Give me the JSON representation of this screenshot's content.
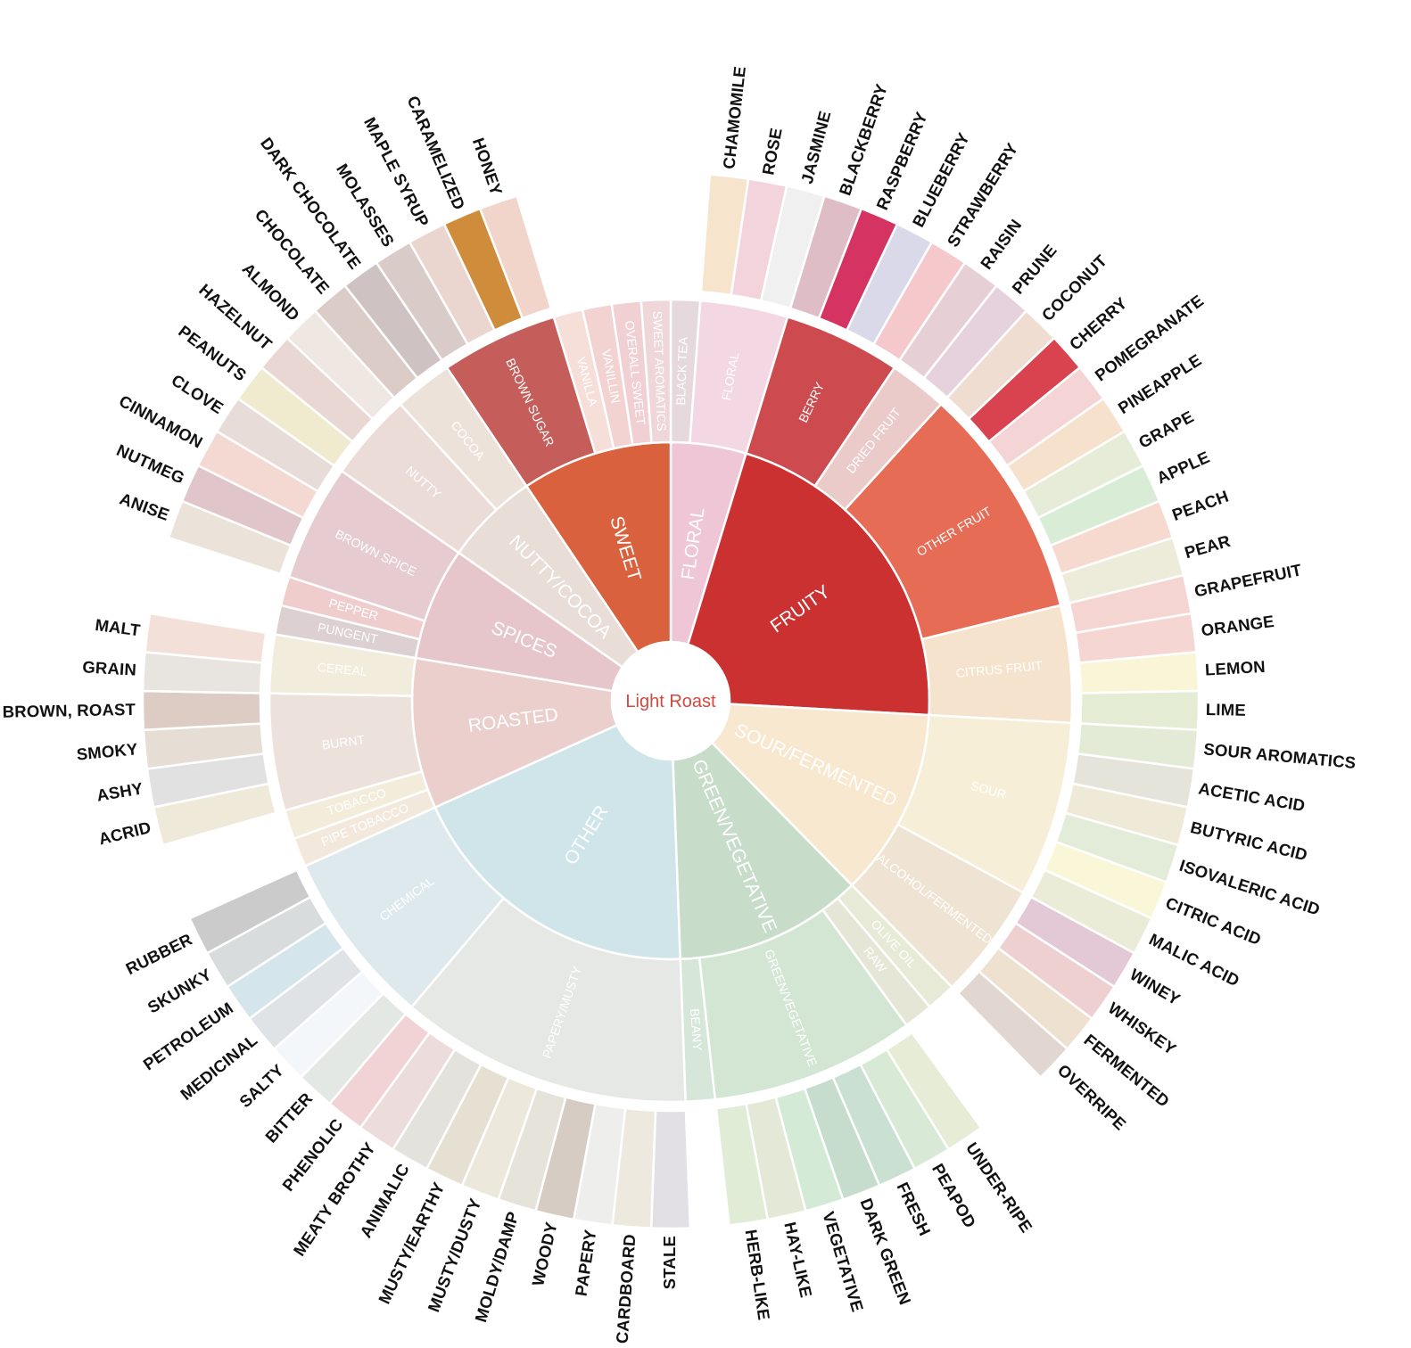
{
  "center": {
    "label": "Light Roast",
    "color": "#d3483f"
  },
  "categories": [
    {
      "label": "FLORAL",
      "color": "#eec6d6",
      "sub": [
        {
          "label": "BLACK TEA",
          "color": "#e6d9dd",
          "leaves": []
        },
        {
          "label": "FLORAL",
          "color": "#f3d7e2",
          "leaves": [
            {
              "label": "CHAMOMILE",
              "color": "#f7e4cd"
            },
            {
              "label": "ROSE",
              "color": "#f4d4dc"
            },
            {
              "label": "JASMINE",
              "color": "#f0f0f0"
            }
          ]
        }
      ]
    },
    {
      "label": "FRUITY",
      "color": "#cb3131",
      "sub": [
        {
          "label": "BERRY",
          "color": "#cd4b4f",
          "leaves": [
            {
              "label": "BLACKBERRY",
              "color": "#dfbdc6"
            },
            {
              "label": "RASPBERRY",
              "color": "#d53463"
            },
            {
              "label": "BLUEBERRY",
              "color": "#d9d9ea"
            },
            {
              "label": "STRAWBERRY",
              "color": "#f5c9cc"
            }
          ]
        },
        {
          "label": "DRIED FRUIT",
          "color": "#ebcaca",
          "leaves": [
            {
              "label": "RAISIN",
              "color": "#e7cfd6"
            },
            {
              "label": "PRUNE",
              "color": "#e5d2dc"
            }
          ]
        },
        {
          "label": "OTHER FRUIT",
          "color": "#e66c56",
          "leaves": [
            {
              "label": "COCONUT",
              "color": "#efddd1"
            },
            {
              "label": "CHERRY",
              "color": "#d8434f"
            },
            {
              "label": "POMEGRANATE",
              "color": "#f4d4d4"
            },
            {
              "label": "PINEAPPLE",
              "color": "#f6e2cc"
            },
            {
              "label": "GRAPE",
              "color": "#e7ecd8"
            },
            {
              "label": "APPLE",
              "color": "#d9ecd5"
            },
            {
              "label": "PEACH",
              "color": "#f6d9cf"
            },
            {
              "label": "PEAR",
              "color": "#edebd9"
            }
          ]
        },
        {
          "label": "CITRUS FRUIT",
          "color": "#f6e3cd",
          "leaves": [
            {
              "label": "GRAPEFRUIT",
              "color": "#f5d5d2"
            },
            {
              "label": "ORANGE",
              "color": "#f5d6d2"
            },
            {
              "label": "LEMON",
              "color": "#f9f5d6"
            },
            {
              "label": "LIME",
              "color": "#e4ecd4"
            }
          ]
        }
      ]
    },
    {
      "label": "SOUR/FERMENTED",
      "color": "#f7e8cf",
      "sub": [
        {
          "label": "SOUR",
          "color": "#f7eed8",
          "leaves": [
            {
              "label": "SOUR AROMATICS",
              "color": "#e3ebd6"
            },
            {
              "label": "ACETIC ACID",
              "color": "#e4e4da"
            },
            {
              "label": "BUTYRIC ACID",
              "color": "#efe9d8"
            },
            {
              "label": "ISOVALERIC ACID",
              "color": "#e3ecd8"
            },
            {
              "label": "CITRIC ACID",
              "color": "#faf7d8"
            },
            {
              "label": "MALIC ACID",
              "color": "#eaecd8"
            }
          ]
        },
        {
          "label": "ALCOHOL/FERMENTED",
          "color": "#efe3d3",
          "leaves": [
            {
              "label": "WINEY",
              "color": "#e3c8d6"
            },
            {
              "label": "WHISKEY",
              "color": "#efd0d0"
            },
            {
              "label": "FERMENTED",
              "color": "#eee1d0"
            },
            {
              "label": "OVERRIPE",
              "color": "#e2d6d1"
            }
          ]
        }
      ]
    },
    {
      "label": "GREEN/VEGETATIVE",
      "color": "#c7dcc9",
      "sub": [
        {
          "label": "OLIVE OIL",
          "color": "#e6ead6",
          "leaves": []
        },
        {
          "label": "RAW",
          "color": "#e6e6d6",
          "leaves": []
        },
        {
          "label": "GREEN/VEGETATIVE",
          "color": "#d3e6d4",
          "leaves": [
            {
              "label": "UNDER-RIPE",
              "color": "#e6ecd6"
            },
            {
              "label": "PEAPOD",
              "color": "#d8ead6"
            },
            {
              "label": "FRESH",
              "color": "#c9e0d2"
            },
            {
              "label": "DARK GREEN",
              "color": "#c6dccc"
            },
            {
              "label": "VEGETATIVE",
              "color": "#d3ead6"
            },
            {
              "label": "HAY-LIKE",
              "color": "#e3e9d6"
            },
            {
              "label": "HERB-LIKE",
              "color": "#e0ecd6"
            }
          ]
        },
        {
          "label": "BEANY",
          "color": "#d6e6d9",
          "leaves": []
        }
      ]
    },
    {
      "label": "OTHER",
      "color": "#cfe5ea",
      "sub": [
        {
          "label": "PAPERY/MUSTY",
          "color": "#e6e8e6",
          "leaves": [
            {
              "label": "STALE",
              "color": "#e2e0e4"
            },
            {
              "label": "CARDBOARD",
              "color": "#eee9df"
            },
            {
              "label": "PAPERY",
              "color": "#eeeeec"
            },
            {
              "label": "WOODY",
              "color": "#d7ccc4"
            },
            {
              "label": "MOLDY/DAMP",
              "color": "#e5e3da"
            },
            {
              "label": "MUSTY/DUSTY",
              "color": "#ece8dc"
            },
            {
              "label": "MUSTY/EARTHY",
              "color": "#e5e0d2"
            },
            {
              "label": "ANIMALIC",
              "color": "#e4e2dd"
            },
            {
              "label": "MEATY BROTHY",
              "color": "#ecdcdb"
            },
            {
              "label": "PHENOLIC",
              "color": "#f1d2d5"
            }
          ]
        },
        {
          "label": "CHEMICAL",
          "color": "#dde9ec",
          "leaves": [
            {
              "label": "BITTER",
              "color": "#e4e8e4"
            },
            {
              "label": "SALTY",
              "color": "#f3f7fa"
            },
            {
              "label": "MEDICINAL",
              "color": "#dfe3e5"
            },
            {
              "label": "PETROLEUM",
              "color": "#d4e5ec"
            },
            {
              "label": "SKUNKY",
              "color": "#d9dcdc"
            },
            {
              "label": "RUBBER",
              "color": "#cbcbcb"
            }
          ]
        }
      ]
    },
    {
      "label": "ROASTED",
      "color": "#ebcfcd",
      "sub": [
        {
          "label": "PIPE TOBACCO",
          "color": "#f2e9dc",
          "leaves": []
        },
        {
          "label": "TOBACCO",
          "color": "#f3ecdb",
          "leaves": []
        },
        {
          "label": "BURNT",
          "color": "#ede2db",
          "leaves": [
            {
              "label": "ACRID",
              "color": "#eee9d9"
            },
            {
              "label": "ASHY",
              "color": "#e1e1e1"
            },
            {
              "label": "SMOKY",
              "color": "#e6ddd5"
            },
            {
              "label": "BROWN, ROAST",
              "color": "#dcccc3"
            }
          ]
        },
        {
          "label": "CEREAL",
          "color": "#f2ecdc",
          "leaves": [
            {
              "label": "GRAIN",
              "color": "#e8e4e0"
            },
            {
              "label": "MALT",
              "color": "#f3e1d9"
            }
          ]
        }
      ]
    },
    {
      "label": "SPICES",
      "color": "#e6c6ca",
      "sub": [
        {
          "label": "PUNGENT",
          "color": "#ddd0d3",
          "leaves": []
        },
        {
          "label": "PEPPER",
          "color": "#f0cdcd",
          "leaves": []
        },
        {
          "label": "BROWN SPICE",
          "color": "#e6ccd0",
          "leaves": [
            {
              "label": "ANISE",
              "color": "#ebe2d9"
            },
            {
              "label": "NUTMEG",
              "color": "#e0c6cb"
            },
            {
              "label": "CINNAMON",
              "color": "#f3d9d2"
            },
            {
              "label": "CLOVE",
              "color": "#e8dcd9"
            }
          ]
        }
      ]
    },
    {
      "label": "NUTTY/COCOA",
      "color": "#e8ddd7",
      "sub": [
        {
          "label": "NUTTY",
          "color": "#ecdcd7",
          "leaves": [
            {
              "label": "PEANUTS",
              "color": "#f0ebcf"
            },
            {
              "label": "HAZELNUT",
              "color": "#e8d7d2"
            },
            {
              "label": "ALMOND",
              "color": "#efe7e2"
            }
          ]
        },
        {
          "label": "COCOA",
          "color": "#ede2da",
          "leaves": [
            {
              "label": "CHOCOLATE",
              "color": "#dcccc8"
            },
            {
              "label": "DARK CHOCOLATE",
              "color": "#cfc2c2"
            }
          ]
        }
      ]
    },
    {
      "label": "SWEET",
      "color": "#d9613e",
      "sub": [
        {
          "label": "BROWN SUGAR",
          "color": "#c55e5a",
          "leaves": [
            {
              "label": "MOLASSES",
              "color": "#d9cbc8"
            },
            {
              "label": "MAPLE SYRUP",
              "color": "#ebd6cf"
            },
            {
              "label": "CARAMELIZED",
              "color": "#cf8d3c"
            },
            {
              "label": "HONEY",
              "color": "#f1d5cb"
            }
          ]
        },
        {
          "label": "VANILLA",
          "color": "#f6dfd9",
          "leaves": []
        },
        {
          "label": "VANILLIN",
          "color": "#f3d2d2",
          "leaves": []
        },
        {
          "label": "OVERALL SWEET",
          "color": "#f1d0d3",
          "leaves": []
        },
        {
          "label": "SWEET AROMATICS",
          "color": "#efd7d9",
          "leaves": []
        }
      ]
    }
  ]
}
